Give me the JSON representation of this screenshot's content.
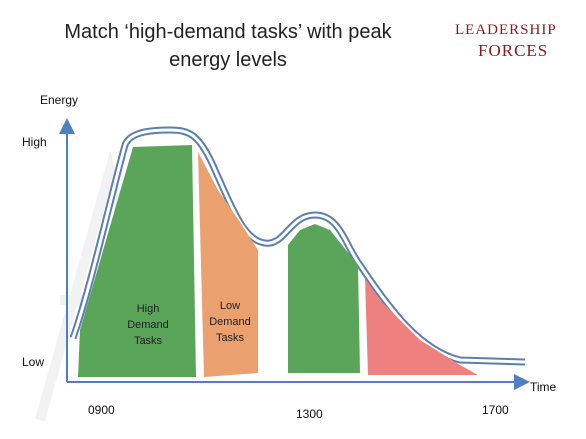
{
  "header": {
    "title": [
      "Match ‘high-demand tasks’ with peak",
      "energy levels"
    ],
    "logo": [
      "LEADERSHIP",
      "FORCES"
    ]
  },
  "axes": {
    "y_label": "Energy",
    "x_label": "Time",
    "y_high": "High",
    "y_low": "Low",
    "times": [
      "0900",
      "1300",
      "1700"
    ]
  },
  "regions": [
    {
      "label": [
        "High",
        "Demand",
        "Tasks"
      ]
    },
    {
      "label": [
        "Low",
        "Demand",
        "Tasks"
      ]
    }
  ]
}
